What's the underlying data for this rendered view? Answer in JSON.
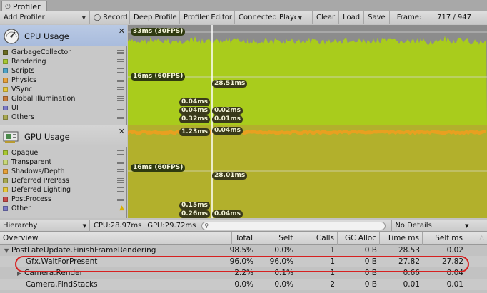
{
  "window": {
    "tab_title": "Profiler"
  },
  "toolbar": {
    "add_profiler": "Add Profiler",
    "record": "Record",
    "deep_profile": "Deep Profile",
    "profiler_editor": "Profiler Editor",
    "connected_player": "Connected Playe",
    "clear": "Clear",
    "load": "Load",
    "save": "Save",
    "frame_label": "Frame:",
    "frame_value": "717 / 947"
  },
  "cpu_panel": {
    "title": "CPU Usage",
    "icon": "cpu-speedometer-icon",
    "legend": [
      {
        "label": "GarbageCollector",
        "color": "#6b6b20"
      },
      {
        "label": "Rendering",
        "color": "#a8c832"
      },
      {
        "label": "Scripts",
        "color": "#4fa3c8"
      },
      {
        "label": "Physics",
        "color": "#e8a23a"
      },
      {
        "label": "VSync",
        "color": "#e8c83a"
      },
      {
        "label": "Global Illumination",
        "color": "#c87a3a"
      },
      {
        "label": "UI",
        "color": "#7a7ac8"
      },
      {
        "label": "Others",
        "color": "#a8a850"
      }
    ],
    "labels": {
      "fps30": "33ms (30FPS)",
      "fps60": "16ms (60FPS)",
      "sel_main": "28.51ms",
      "sel_a": "0.04ms",
      "sel_b": "0.04ms",
      "sel_c": "0.02ms",
      "sel_d": "0.32ms",
      "sel_e": "0.01ms"
    }
  },
  "gpu_panel": {
    "title": "GPU Usage",
    "icon": "gpu-card-icon",
    "legend": [
      {
        "label": "Opaque",
        "color": "#a8c832"
      },
      {
        "label": "Transparent",
        "color": "#c8d878"
      },
      {
        "label": "Shadows/Depth",
        "color": "#e8a23a"
      },
      {
        "label": "Deferred PrePass",
        "color": "#a8a850"
      },
      {
        "label": "Deferred Lighting",
        "color": "#e8c83a"
      },
      {
        "label": "PostProcess",
        "color": "#c84a4a"
      },
      {
        "label": "Other",
        "color": "#7a7ac8"
      }
    ],
    "labels": {
      "fps60": "16ms (60FPS)",
      "sel_main": "28.01ms",
      "top_a": "1.23ms",
      "top_b": "0.04ms",
      "sel_a": "0.15ms",
      "sel_b": "0.26ms",
      "sel_c": "0.04ms"
    }
  },
  "hierarchy_bar": {
    "view": "Hierarchy",
    "cpu": "CPU:28.97ms",
    "gpu": "GPU:29.72ms",
    "search_placeholder": "",
    "details": "No Details"
  },
  "table": {
    "columns": [
      "Overview",
      "Total",
      "Self",
      "Calls",
      "GC Alloc",
      "Time ms",
      "Self ms"
    ],
    "rows": [
      {
        "name": "PostLateUpdate.FinishFrameRendering",
        "total": "98.5%",
        "self": "0.0%",
        "calls": "1",
        "gc": "0 B",
        "time": "28.53",
        "self_ms": "0.02"
      },
      {
        "name": "Gfx.WaitForPresent",
        "total": "96.0%",
        "self": "96.0%",
        "calls": "1",
        "gc": "0 B",
        "time": "27.82",
        "self_ms": "27.82"
      },
      {
        "name": "Camera.Render",
        "total": "2.2%",
        "self": "0.1%",
        "calls": "1",
        "gc": "0 B",
        "time": "0.66",
        "self_ms": "0.04"
      },
      {
        "name": "Camera.FindStacks",
        "total": "0.0%",
        "self": "0.0%",
        "calls": "2",
        "gc": "0 B",
        "time": "0.01",
        "self_ms": "0.01"
      }
    ]
  },
  "colors": {
    "cpu_area": "#a9cc1c",
    "gpu_area": "#b2b02c",
    "gpu_shadow_band": "#e8a020",
    "highlight": "#d62020"
  }
}
